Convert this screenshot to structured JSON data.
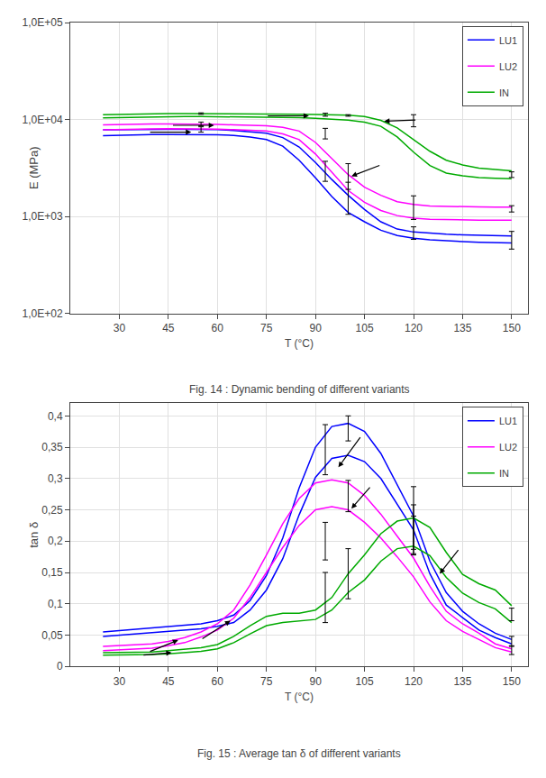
{
  "chart_data": [
    {
      "type": "line",
      "title": "Fig. 14 : Dynamic bending of different variants",
      "xlabel": "T (°C)",
      "ylabel": "E (MPa)",
      "log": "y",
      "grid": true,
      "legend": "upper right",
      "xlim": [
        15,
        155
      ],
      "xticks": [
        30,
        45,
        60,
        75,
        90,
        105,
        120,
        135,
        150
      ],
      "ylim": [
        100,
        100000
      ],
      "yticks": [
        {
          "value": 100,
          "label": "1,0E+02"
        },
        {
          "value": 1000,
          "label": "1,0E+03"
        },
        {
          "value": 10000,
          "label": "1,0E+04"
        },
        {
          "value": 100000,
          "label": "1,0E+05"
        }
      ],
      "x": [
        25,
        30,
        35,
        40,
        45,
        50,
        55,
        60,
        65,
        70,
        75,
        80,
        85,
        90,
        95,
        100,
        105,
        110,
        115,
        120,
        125,
        130,
        135,
        140,
        145,
        150
      ],
      "series": [
        {
          "name": "LU1",
          "color": "#0000FF",
          "values": [
            7800,
            7850,
            7900,
            7900,
            7900,
            7900,
            7900,
            7850,
            7700,
            7500,
            7200,
            6500,
            5200,
            3600,
            2400,
            1650,
            1180,
            880,
            740,
            690,
            670,
            655,
            645,
            638,
            633,
            628
          ]
        },
        {
          "name": "LU1",
          "color": "#0000FF",
          "values": [
            6800,
            6900,
            6950,
            7000,
            7000,
            7000,
            7000,
            6950,
            6850,
            6600,
            6200,
            5300,
            3800,
            2500,
            1600,
            1100,
            880,
            720,
            635,
            595,
            575,
            560,
            550,
            542,
            538,
            533
          ]
        },
        {
          "name": "LU2",
          "color": "#FF00FF",
          "values": [
            8800,
            8900,
            8950,
            9000,
            9000,
            9000,
            8950,
            8900,
            8800,
            8700,
            8600,
            8300,
            7600,
            5800,
            4000,
            2700,
            2000,
            1650,
            1420,
            1330,
            1280,
            1265,
            1258,
            1252,
            1248,
            1245
          ]
        },
        {
          "name": "LU2",
          "color": "#FF00FF",
          "values": [
            7800,
            7900,
            7950,
            8000,
            8050,
            8050,
            8000,
            7950,
            7850,
            7750,
            7600,
            7100,
            6200,
            4400,
            2850,
            1850,
            1400,
            1150,
            1020,
            960,
            935,
            925,
            920,
            916,
            914,
            912
          ]
        },
        {
          "name": "IN",
          "color": "#00AA00",
          "values": [
            11200,
            11300,
            11400,
            11500,
            11500,
            11500,
            11500,
            11480,
            11460,
            11440,
            11420,
            11380,
            11330,
            11280,
            11180,
            11050,
            10700,
            9800,
            8200,
            6200,
            4700,
            3800,
            3400,
            3150,
            3050,
            2950
          ]
        },
        {
          "name": "IN",
          "color": "#00AA00",
          "values": [
            10400,
            10500,
            10600,
            10700,
            10750,
            10750,
            10730,
            10700,
            10660,
            10620,
            10580,
            10520,
            10420,
            10300,
            10100,
            9850,
            9400,
            8500,
            6600,
            4600,
            3350,
            2800,
            2620,
            2520,
            2480,
            2450
          ]
        },
        {
          "type": "errorbar",
          "color": "#000000",
          "x": [
            55,
            93,
            100,
            120,
            150
          ],
          "values": [
            7900,
            3000,
            1650,
            680,
            580
          ],
          "errors": [
            500,
            700,
            600,
            100,
            120
          ]
        },
        {
          "type": "errorbar",
          "color": "#000000",
          "x": [
            55,
            93,
            100,
            120,
            150
          ],
          "values": [
            9000,
            7200,
            2700,
            1280,
            1200
          ],
          "errors": [
            400,
            900,
            800,
            350,
            90
          ]
        },
        {
          "type": "errorbar",
          "color": "#000000",
          "x": [
            55,
            93,
            100,
            120,
            150
          ],
          "values": [
            11500,
            11200,
            11000,
            9800,
            2700
          ],
          "errors": [
            200,
            400,
            200,
            1400,
            180
          ]
        }
      ],
      "annotations": [
        {
          "x": 52,
          "y": 7400,
          "from_x": 39,
          "from_y": 7400
        },
        {
          "x": 59,
          "y": 8700,
          "from_x": 46,
          "from_y": 8700
        },
        {
          "x": 88,
          "y": 10900,
          "from_x": 75,
          "from_y": 10900
        },
        {
          "x": 111,
          "y": 9600,
          "from_x": 121,
          "from_y": 9900
        },
        {
          "x": 101,
          "y": 2600,
          "from_x": 110,
          "from_y": 3400
        }
      ]
    },
    {
      "type": "line",
      "title": "Fig. 15 : Average tan δ of different variants",
      "xlabel": "T (°C)",
      "ylabel": "tan δ",
      "grid": true,
      "legend": "upper right",
      "xlim": [
        15,
        155
      ],
      "xticks": [
        30,
        45,
        60,
        75,
        90,
        105,
        120,
        135,
        150
      ],
      "ylim": [
        0,
        0.42
      ],
      "yticks": [
        0,
        {
          "value": 0.05,
          "label": "0,05"
        },
        {
          "value": 0.1,
          "label": "0,1"
        },
        {
          "value": 0.15,
          "label": "0,15"
        },
        {
          "value": 0.2,
          "label": "0,2"
        },
        {
          "value": 0.25,
          "label": "0,25"
        },
        {
          "value": 0.3,
          "label": "0,3"
        },
        {
          "value": 0.35,
          "label": "0,35"
        },
        {
          "value": 0.4,
          "label": "0,4"
        }
      ],
      "x": [
        25,
        30,
        35,
        40,
        45,
        50,
        55,
        60,
        65,
        70,
        75,
        80,
        85,
        90,
        95,
        100,
        105,
        110,
        115,
        120,
        125,
        130,
        135,
        140,
        145,
        150
      ],
      "series": [
        {
          "name": "LU1",
          "color": "#0000FF",
          "values": [
            0.055,
            0.057,
            0.059,
            0.061,
            0.063,
            0.065,
            0.068,
            0.073,
            0.082,
            0.105,
            0.145,
            0.205,
            0.285,
            0.35,
            0.383,
            0.388,
            0.375,
            0.34,
            0.29,
            0.24,
            0.168,
            0.118,
            0.088,
            0.068,
            0.053,
            0.043
          ]
        },
        {
          "name": "LU1",
          "color": "#0000FF",
          "values": [
            0.048,
            0.05,
            0.052,
            0.054,
            0.056,
            0.058,
            0.06,
            0.064,
            0.07,
            0.09,
            0.122,
            0.172,
            0.242,
            0.302,
            0.332,
            0.337,
            0.327,
            0.3,
            0.258,
            0.218,
            0.148,
            0.098,
            0.078,
            0.058,
            0.046,
            0.036
          ]
        },
        {
          "name": "LU2",
          "color": "#FF00FF",
          "values": [
            0.032,
            0.033,
            0.034,
            0.036,
            0.04,
            0.046,
            0.055,
            0.068,
            0.09,
            0.13,
            0.178,
            0.228,
            0.268,
            0.293,
            0.298,
            0.293,
            0.273,
            0.243,
            0.208,
            0.173,
            0.128,
            0.088,
            0.068,
            0.053,
            0.036,
            0.028
          ]
        },
        {
          "name": "LU2",
          "color": "#FF00FF",
          "values": [
            0.025,
            0.026,
            0.027,
            0.029,
            0.033,
            0.038,
            0.047,
            0.058,
            0.077,
            0.11,
            0.15,
            0.19,
            0.225,
            0.25,
            0.255,
            0.25,
            0.23,
            0.205,
            0.175,
            0.143,
            0.103,
            0.073,
            0.056,
            0.043,
            0.03,
            0.023
          ]
        },
        {
          "name": "IN",
          "color": "#00AA00",
          "values": [
            0.022,
            0.022,
            0.022,
            0.023,
            0.025,
            0.027,
            0.03,
            0.035,
            0.048,
            0.065,
            0.08,
            0.085,
            0.085,
            0.09,
            0.11,
            0.148,
            0.178,
            0.212,
            0.232,
            0.237,
            0.222,
            0.182,
            0.147,
            0.132,
            0.122,
            0.097
          ]
        },
        {
          "name": "IN",
          "color": "#00AA00",
          "values": [
            0.018,
            0.018,
            0.018,
            0.019,
            0.02,
            0.022,
            0.024,
            0.028,
            0.038,
            0.052,
            0.065,
            0.07,
            0.072,
            0.075,
            0.09,
            0.118,
            0.138,
            0.168,
            0.188,
            0.192,
            0.177,
            0.142,
            0.117,
            0.102,
            0.092,
            0.07
          ]
        },
        {
          "type": "errorbar",
          "color": "#000000",
          "x": [
            93,
            100,
            120,
            150
          ],
          "values": [
            0.346,
            0.38,
            0.237,
            0.04
          ],
          "errors": [
            0.04,
            0.02,
            0.05,
            0.008
          ]
        },
        {
          "type": "errorbar",
          "color": "#000000",
          "x": [
            93,
            100,
            120,
            150
          ],
          "values": [
            0.2,
            0.272,
            0.218,
            0.026
          ],
          "errors": [
            0.03,
            0.025,
            0.04,
            0.007
          ]
        },
        {
          "type": "errorbar",
          "color": "#000000",
          "x": [
            93,
            100,
            120,
            150
          ],
          "values": [
            0.11,
            0.148,
            0.21,
            0.083
          ],
          "errors": [
            0.04,
            0.04,
            0.03,
            0.01
          ]
        }
      ],
      "annotations": [
        {
          "x": 64,
          "y": 0.073,
          "from_x": 55,
          "from_y": 0.043
        },
        {
          "x": 48,
          "y": 0.042,
          "from_x": 39,
          "from_y": 0.023
        },
        {
          "x": 46,
          "y": 0.022,
          "from_x": 37,
          "from_y": 0.018
        },
        {
          "x": 97,
          "y": 0.318,
          "from_x": 104,
          "from_y": 0.368
        },
        {
          "x": 101,
          "y": 0.252,
          "from_x": 107,
          "from_y": 0.288
        },
        {
          "x": 128,
          "y": 0.148,
          "from_x": 134,
          "from_y": 0.188
        }
      ]
    }
  ]
}
